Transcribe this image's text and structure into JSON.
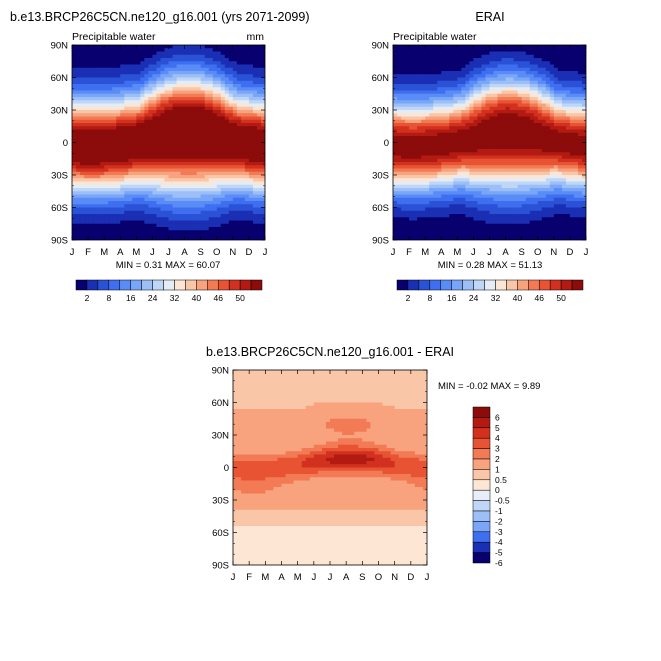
{
  "chart_data": [
    {
      "type": "heatmap",
      "title": "b.e13.BRCP26C5CN.ne120_g16.001 (yrs 2071-2099)",
      "subtitle_left": "Precipitable water",
      "subtitle_right": "mm",
      "stats": "MIN =   0.31 MAX =  60.07",
      "x_ticks": [
        "J",
        "F",
        "M",
        "A",
        "M",
        "J",
        "J",
        "A",
        "S",
        "O",
        "N",
        "D",
        "J"
      ],
      "y_ticks": [
        "90N",
        "60N",
        "30N",
        "0",
        "30S",
        "60S",
        "90S"
      ],
      "y_range": [
        -90,
        90
      ],
      "colorbar_labels": [
        "2",
        "8",
        "16",
        "24",
        "32",
        "40",
        "46",
        "50"
      ]
    },
    {
      "type": "heatmap",
      "title": "ERAI",
      "subtitle_left": "Precipitable water",
      "subtitle_right": "",
      "stats": "MIN =   0.28 MAX =  51.13",
      "x_ticks": [
        "J",
        "F",
        "M",
        "A",
        "M",
        "J",
        "J",
        "A",
        "S",
        "O",
        "N",
        "D",
        "J"
      ],
      "y_ticks": [
        "90N",
        "60N",
        "30N",
        "0",
        "30S",
        "60S",
        "90S"
      ],
      "y_range": [
        -90,
        90
      ],
      "colorbar_labels": [
        "2",
        "8",
        "16",
        "24",
        "32",
        "40",
        "46",
        "50"
      ]
    },
    {
      "type": "heatmap",
      "title": "b.e13.BRCP26C5CN.ne120_g16.001 - ERAI",
      "stats": "MIN =  -0.02 MAX =   9.89",
      "x_ticks": [
        "J",
        "F",
        "M",
        "A",
        "M",
        "J",
        "J",
        "A",
        "S",
        "O",
        "N",
        "D",
        "J"
      ],
      "y_ticks": [
        "90N",
        "60N",
        "30N",
        "0",
        "30S",
        "60S",
        "90S"
      ],
      "y_range": [
        -90,
        90
      ],
      "colorbar_labels": [
        "6",
        "5",
        "4",
        "3",
        "2",
        "1",
        "0.5",
        "0",
        "-0.5",
        "-1",
        "-2",
        "-3",
        "-4",
        "-5",
        "-6"
      ]
    }
  ],
  "colors": {
    "field_scale": [
      "#08006e",
      "#1b2fb5",
      "#2a52d6",
      "#3f6ff0",
      "#5a8cf7",
      "#7aa6f8",
      "#9cbff7",
      "#c0d6f6",
      "#e4ecf6",
      "#fbe5d4",
      "#fac6a8",
      "#f8a27e",
      "#f27b55",
      "#e85433",
      "#d2311f",
      "#b21a12",
      "#8c0b0b"
    ],
    "diff_scale": [
      "#8c0b0b",
      "#b21a12",
      "#d2311f",
      "#e85433",
      "#f27b55",
      "#f8a27e",
      "#fac6a8",
      "#fde6d4",
      "#e8eef7",
      "#c0d6f6",
      "#9cbff7",
      "#7aa6f8",
      "#3f6ff0",
      "#1b2fb5",
      "#08006e"
    ]
  }
}
